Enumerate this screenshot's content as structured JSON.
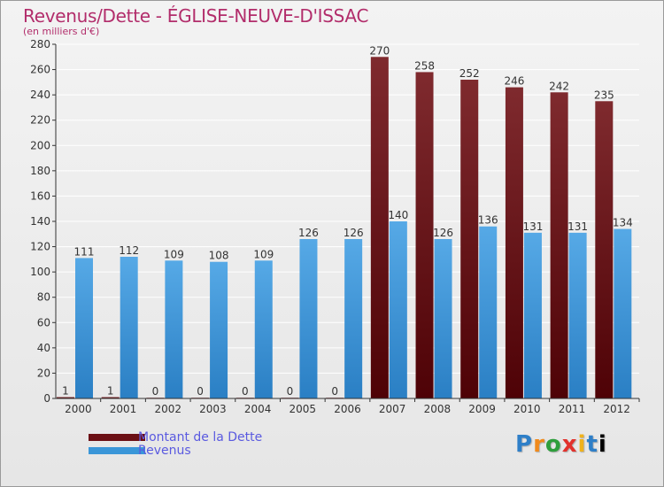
{
  "header": {
    "title": "Revenus/Dette - ÉGLISE-NEUVE-D'ISSAC",
    "subtitle": "(en milliers d'€)"
  },
  "colors": {
    "dette": "#6b0f14",
    "revenus": "#3a96d8",
    "grid": "#ffffff",
    "axis": "#333333"
  },
  "legend": {
    "items": [
      {
        "label": "Montant de la Dette",
        "color": "#6b0f14"
      },
      {
        "label": "Revenus",
        "color": "#3a96d8"
      }
    ],
    "placement": "bottom-left"
  },
  "logo": {
    "text": "Proxiti"
  },
  "chart_data": {
    "type": "bar",
    "title": "Revenus/Dette - ÉGLISE-NEUVE-D'ISSAC",
    "subtitle": "(en milliers d'€)",
    "xlabel": "",
    "ylabel": "",
    "ylim": [
      0,
      280
    ],
    "yticks": [
      0,
      20,
      40,
      60,
      80,
      100,
      120,
      140,
      160,
      180,
      200,
      220,
      240,
      260,
      280
    ],
    "grid": true,
    "categories": [
      "2000",
      "2001",
      "2002",
      "2003",
      "2004",
      "2005",
      "2006",
      "2007",
      "2008",
      "2009",
      "2010",
      "2011",
      "2012"
    ],
    "series": [
      {
        "name": "Montant de la Dette",
        "values": [
          1,
          1,
          0,
          0,
          0,
          0,
          0,
          270,
          258,
          252,
          246,
          242,
          235
        ],
        "labels": [
          "1",
          "1",
          "0",
          "0",
          "0",
          "0",
          "0",
          "270",
          "258",
          "252",
          "246",
          "242",
          "235"
        ]
      },
      {
        "name": "Revenus",
        "values": [
          111,
          112,
          109,
          108,
          109,
          126,
          126,
          140,
          126,
          136,
          131,
          131,
          134
        ],
        "labels": [
          "111",
          "112",
          "109",
          "108",
          "109",
          "126",
          "126",
          "140",
          "126",
          "136",
          "131",
          "131",
          "134"
        ]
      }
    ]
  }
}
